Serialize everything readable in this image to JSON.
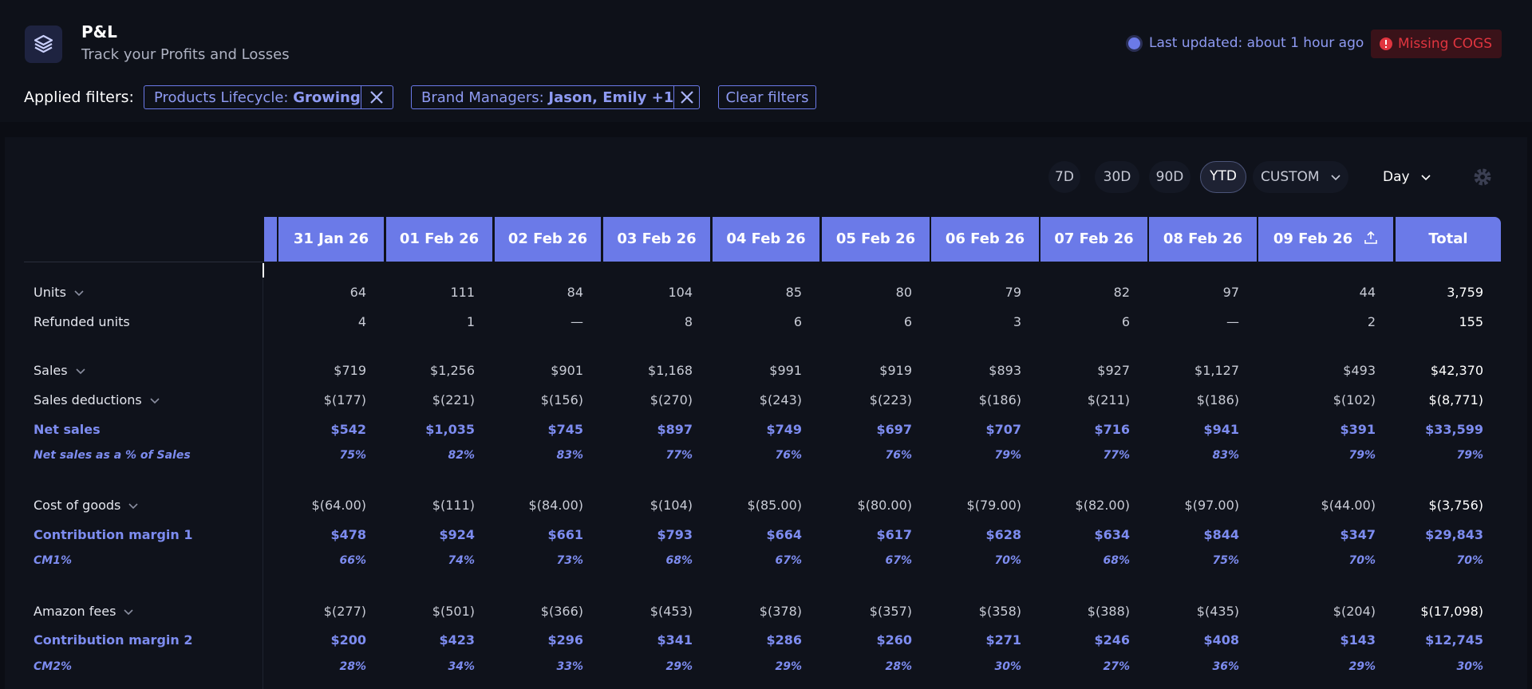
{
  "header": {
    "title": "P&L",
    "subtitle": "Track your Profits and Losses",
    "last_updated": "Last updated: about 1 hour ago",
    "warning": "Missing COGS"
  },
  "filters": {
    "label": "Applied filters:",
    "chips": [
      {
        "name": "Products Lifecycle:",
        "value": "Growing"
      },
      {
        "name": "Brand Managers:",
        "value": "Jason, Emily +1"
      }
    ],
    "clear": "Clear filters"
  },
  "periods": {
    "options": [
      "7D",
      "30D",
      "90D",
      "YTD",
      "CUSTOM"
    ],
    "selected": "YTD",
    "granularity": "Day"
  },
  "table": {
    "columns": [
      "31 Jan 26",
      "01 Feb 26",
      "02 Feb 26",
      "03 Feb 26",
      "04 Feb 26",
      "05 Feb 26",
      "06 Feb 26",
      "07 Feb 26",
      "08 Feb 26",
      "09 Feb 26",
      "Total"
    ],
    "rows": [
      {
        "label": "Units",
        "style": "normal",
        "expandable": true,
        "values": [
          "64",
          "111",
          "84",
          "104",
          "85",
          "80",
          "79",
          "82",
          "97",
          "44",
          "3,759"
        ]
      },
      {
        "label": "Refunded units",
        "style": "normal",
        "expandable": false,
        "values": [
          "4",
          "1",
          "—",
          "8",
          "6",
          "6",
          "3",
          "6",
          "—",
          "2",
          "155"
        ]
      },
      {
        "label": "Sales",
        "style": "normal",
        "expandable": true,
        "values": [
          "$719",
          "$1,256",
          "$901",
          "$1,168",
          "$991",
          "$919",
          "$893",
          "$927",
          "$1,127",
          "$493",
          "$42,370"
        ]
      },
      {
        "label": "Sales deductions",
        "style": "normal",
        "expandable": true,
        "values": [
          "$(177)",
          "$(221)",
          "$(156)",
          "$(270)",
          "$(243)",
          "$(223)",
          "$(186)",
          "$(211)",
          "$(186)",
          "$(102)",
          "$(8,771)"
        ]
      },
      {
        "label": "Net sales",
        "style": "bold",
        "expandable": false,
        "values": [
          "$542",
          "$1,035",
          "$745",
          "$897",
          "$749",
          "$697",
          "$707",
          "$716",
          "$941",
          "$391",
          "$33,599"
        ]
      },
      {
        "label": "Net sales as a % of Sales",
        "style": "percent",
        "expandable": false,
        "values": [
          "75%",
          "82%",
          "83%",
          "77%",
          "76%",
          "76%",
          "79%",
          "77%",
          "83%",
          "79%",
          "79%"
        ]
      },
      {
        "label": "Cost of goods",
        "style": "normal",
        "expandable": true,
        "values": [
          "$(64.00)",
          "$(111)",
          "$(84.00)",
          "$(104)",
          "$(85.00)",
          "$(80.00)",
          "$(79.00)",
          "$(82.00)",
          "$(97.00)",
          "$(44.00)",
          "$(3,756)"
        ]
      },
      {
        "label": "Contribution margin 1",
        "style": "bold",
        "expandable": false,
        "values": [
          "$478",
          "$924",
          "$661",
          "$793",
          "$664",
          "$617",
          "$628",
          "$634",
          "$844",
          "$347",
          "$29,843"
        ]
      },
      {
        "label": "CM1%",
        "style": "percent",
        "expandable": false,
        "values": [
          "66%",
          "74%",
          "73%",
          "68%",
          "67%",
          "67%",
          "70%",
          "68%",
          "75%",
          "70%",
          "70%"
        ]
      },
      {
        "label": "Amazon fees",
        "style": "normal",
        "expandable": true,
        "values": [
          "$(277)",
          "$(501)",
          "$(366)",
          "$(453)",
          "$(378)",
          "$(357)",
          "$(358)",
          "$(388)",
          "$(435)",
          "$(204)",
          "$(17,098)"
        ]
      },
      {
        "label": "Contribution margin 2",
        "style": "bold",
        "expandable": false,
        "values": [
          "$200",
          "$423",
          "$296",
          "$341",
          "$286",
          "$260",
          "$271",
          "$246",
          "$408",
          "$143",
          "$12,745"
        ]
      },
      {
        "label": "CM2%",
        "style": "percent",
        "expandable": false,
        "values": [
          "28%",
          "34%",
          "33%",
          "29%",
          "29%",
          "28%",
          "30%",
          "27%",
          "36%",
          "29%",
          "30%"
        ]
      }
    ]
  }
}
